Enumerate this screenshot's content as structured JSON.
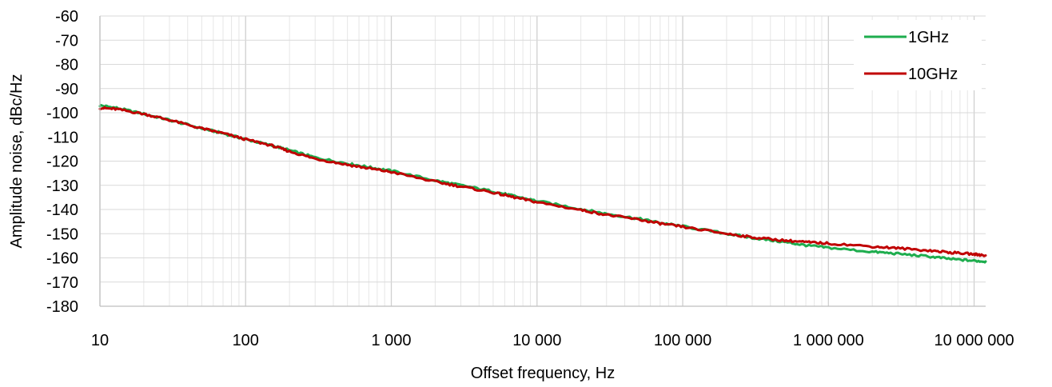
{
  "chart_data": {
    "type": "line",
    "title": "",
    "xlabel": "Offset frequency, Hz",
    "ylabel": "Amplitude noise, dBc/Hz",
    "x_scale": "log",
    "xlim": [
      10,
      12000000
    ],
    "ylim": [
      -180,
      -60
    ],
    "x_ticks": [
      {
        "value": 10,
        "label": "10"
      },
      {
        "value": 100,
        "label": "100"
      },
      {
        "value": 1000,
        "label": "1 000"
      },
      {
        "value": 10000,
        "label": "10 000"
      },
      {
        "value": 100000,
        "label": "100 000"
      },
      {
        "value": 1000000,
        "label": "1 000 000"
      },
      {
        "value": 10000000,
        "label": "10 000 000"
      }
    ],
    "y_ticks": [
      {
        "value": -60,
        "label": "-60"
      },
      {
        "value": -70,
        "label": "-70"
      },
      {
        "value": -80,
        "label": "-80"
      },
      {
        "value": -90,
        "label": "-90"
      },
      {
        "value": -100,
        "label": "-100"
      },
      {
        "value": -110,
        "label": "-110"
      },
      {
        "value": -120,
        "label": "-120"
      },
      {
        "value": -130,
        "label": "-130"
      },
      {
        "value": -140,
        "label": "-140"
      },
      {
        "value": -150,
        "label": "-150"
      },
      {
        "value": -160,
        "label": "-160"
      },
      {
        "value": -170,
        "label": "-170"
      },
      {
        "value": -180,
        "label": "-180"
      }
    ],
    "grid": true,
    "minor_grid_x": true,
    "legend_position": "top-right",
    "series": [
      {
        "name": "1GHz",
        "color": "#1EAD4E",
        "x": [
          10,
          13,
          20,
          30,
          50,
          70,
          100,
          150,
          200,
          300,
          500,
          700,
          1000,
          2000,
          3000,
          5000,
          7000,
          10000,
          20000,
          30000,
          50000,
          70000,
          100000,
          200000,
          300000,
          500000,
          700000,
          1000000,
          2000000,
          3000000,
          5000000,
          7000000,
          10000000,
          12000000
        ],
        "y": [
          -97,
          -98,
          -100.5,
          -103,
          -106.5,
          -108.5,
          -111,
          -113.5,
          -115.5,
          -118.5,
          -121,
          -122.5,
          -124,
          -128,
          -130,
          -132.5,
          -134.5,
          -136.5,
          -139.8,
          -141.8,
          -143.8,
          -145.5,
          -147,
          -150,
          -151.7,
          -153.5,
          -154.8,
          -155.8,
          -157.5,
          -158.3,
          -159.5,
          -160.5,
          -161.2,
          -161.5
        ]
      },
      {
        "name": "10GHz",
        "color": "#C00000",
        "x": [
          10,
          13,
          20,
          30,
          50,
          70,
          100,
          150,
          200,
          300,
          500,
          700,
          1000,
          2000,
          3000,
          5000,
          7000,
          10000,
          20000,
          30000,
          50000,
          70000,
          100000,
          200000,
          300000,
          500000,
          700000,
          1000000,
          2000000,
          3000000,
          5000000,
          7000000,
          10000000,
          12000000
        ],
        "y": [
          -98,
          -98.5,
          -100.5,
          -103,
          -106.5,
          -108.5,
          -111,
          -113.5,
          -116,
          -119,
          -121.5,
          -123,
          -124.5,
          -128.5,
          -130.5,
          -133,
          -135,
          -137,
          -140.2,
          -142.2,
          -144.2,
          -145.8,
          -147.2,
          -150,
          -151.5,
          -152.8,
          -153.5,
          -154,
          -155.3,
          -156,
          -157,
          -157.8,
          -158.5,
          -159
        ]
      }
    ]
  }
}
